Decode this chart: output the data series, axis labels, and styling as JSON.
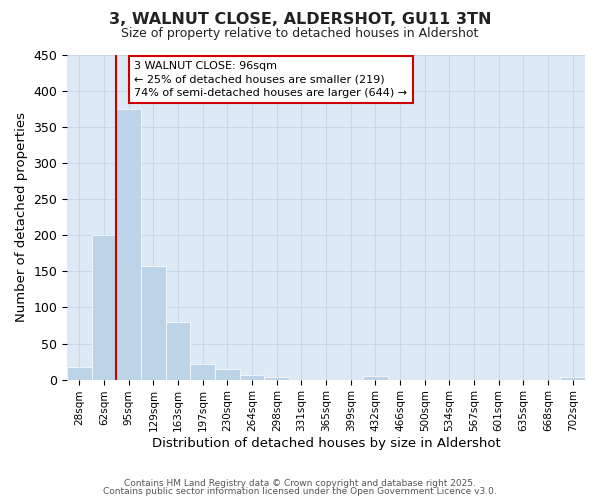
{
  "title1": "3, WALNUT CLOSE, ALDERSHOT, GU11 3TN",
  "title2": "Size of property relative to detached houses in Aldershot",
  "xlabel": "Distribution of detached houses by size in Aldershot",
  "ylabel": "Number of detached properties",
  "bar_labels": [
    "28sqm",
    "62sqm",
    "95sqm",
    "129sqm",
    "163sqm",
    "197sqm",
    "230sqm",
    "264sqm",
    "298sqm",
    "331sqm",
    "365sqm",
    "399sqm",
    "432sqm",
    "466sqm",
    "500sqm",
    "534sqm",
    "567sqm",
    "601sqm",
    "635sqm",
    "668sqm",
    "702sqm"
  ],
  "bar_values": [
    18,
    200,
    375,
    158,
    80,
    22,
    14,
    7,
    4,
    0,
    0,
    0,
    5,
    0,
    0,
    0,
    0,
    0,
    0,
    0,
    4
  ],
  "bar_color": "#bdd4e8",
  "vline_color": "#cc0000",
  "annotation_line1": "3 WALNUT CLOSE: 96sqm",
  "annotation_line2": "← 25% of detached houses are smaller (219)",
  "annotation_line3": "74% of semi-detached houses are larger (644) →",
  "annotation_box_color": "#ffffff",
  "annotation_box_edgecolor": "#cc0000",
  "ylim": [
    0,
    450
  ],
  "yticks": [
    0,
    50,
    100,
    150,
    200,
    250,
    300,
    350,
    400,
    450
  ],
  "grid_color": "#c8d8e8",
  "background_color": "#ddeaf5",
  "footer1": "Contains HM Land Registry data © Crown copyright and database right 2025.",
  "footer2": "Contains public sector information licensed under the Open Government Licence v3.0."
}
